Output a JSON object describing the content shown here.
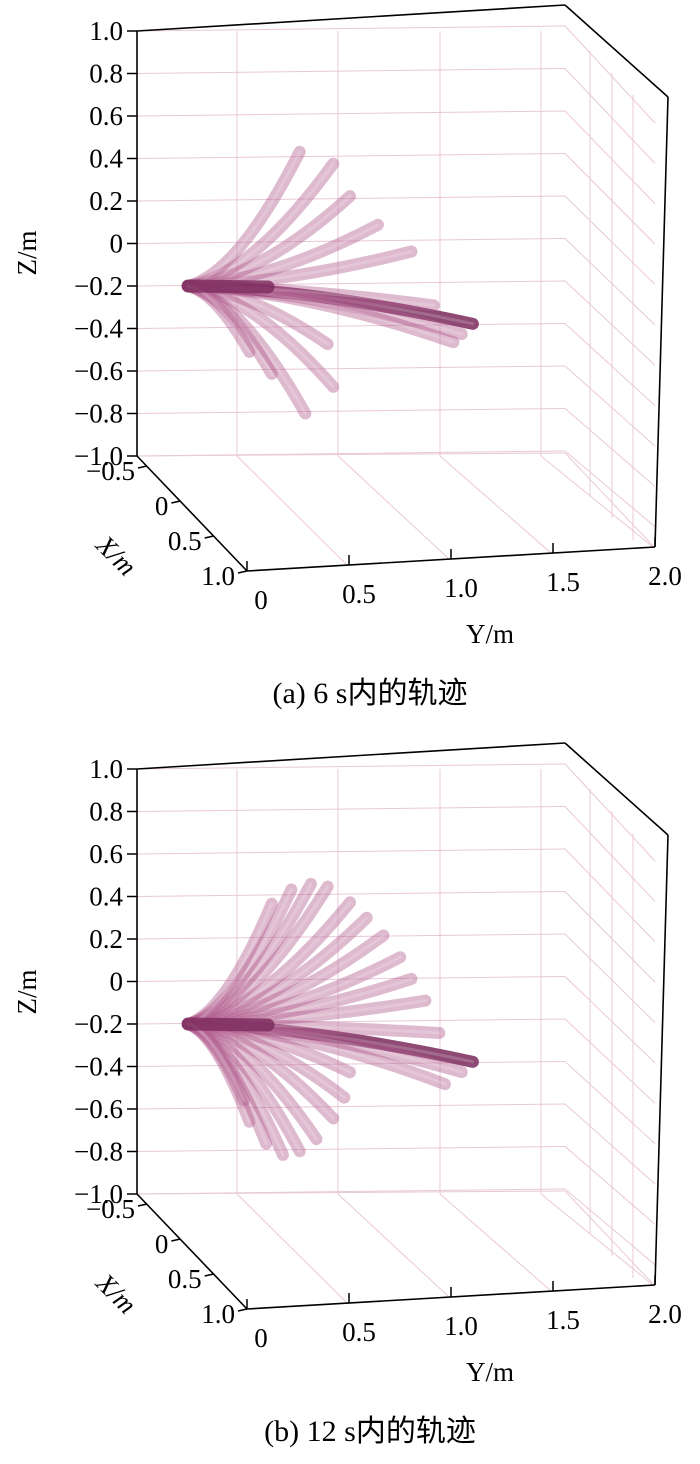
{
  "chart_data": [
    {
      "type": "3d-trajectory",
      "caption": "(a)  6 s内的轨迹",
      "xlabel": "X/m",
      "ylabel": "Y/m",
      "zlabel": "Z/m",
      "xlim": [
        -0.5,
        1.0
      ],
      "ylim": [
        0,
        2.0
      ],
      "zlim": [
        -1.0,
        1.0
      ],
      "x_ticks": [
        "−0.5",
        "0",
        "0.5",
        "1.0"
      ],
      "y_ticks": [
        "0",
        "0.5",
        "1.0",
        "1.5",
        "2.0"
      ],
      "z_ticks": [
        "1.0",
        "0.8",
        "0.6",
        "0.4",
        "0.2",
        "0",
        "−0.2",
        "−0.4",
        "−0.6",
        "−0.8",
        "−1.0"
      ],
      "grid": true,
      "colors": {
        "tube": "#b05a8c",
        "tube_dark": "#7a2a5c",
        "grid": "#e9c8d7"
      },
      "base_point": {
        "y": 0.0,
        "z": -0.2
      },
      "tip_positions": [
        {
          "y": 1.02,
          "z": -0.33
        },
        {
          "y": 0.98,
          "z": -0.38
        },
        {
          "y": 0.95,
          "z": -0.42
        },
        {
          "y": 0.88,
          "z": -0.25
        },
        {
          "y": 0.8,
          "z": 0.0
        },
        {
          "y": 0.68,
          "z": 0.12
        },
        {
          "y": 0.58,
          "z": 0.25
        },
        {
          "y": 0.52,
          "z": 0.4
        },
        {
          "y": 0.4,
          "z": 0.45
        },
        {
          "y": 0.5,
          "z": -0.45
        },
        {
          "y": 0.52,
          "z": -0.65
        },
        {
          "y": 0.42,
          "z": -0.78
        },
        {
          "y": 0.3,
          "z": -0.6
        },
        {
          "y": 0.22,
          "z": -0.5
        }
      ]
    },
    {
      "type": "3d-trajectory",
      "caption": "(b)  12 s内的轨迹",
      "xlabel": "X/m",
      "ylabel": "Y/m",
      "zlabel": "Z/m",
      "xlim": [
        -0.5,
        1.0
      ],
      "ylim": [
        0,
        2.0
      ],
      "zlim": [
        -1.0,
        1.0
      ],
      "x_ticks": [
        "−0.5",
        "0",
        "0.5",
        "1.0"
      ],
      "y_ticks": [
        "0",
        "0.5",
        "1.0",
        "1.5",
        "2.0"
      ],
      "z_ticks": [
        "1.0",
        "0.8",
        "0.6",
        "0.4",
        "0.2",
        "0",
        "−0.2",
        "−0.4",
        "−0.6",
        "−0.8",
        "−1.0"
      ],
      "grid": true,
      "colors": {
        "tube": "#b05a8c",
        "tube_dark": "#7a2a5c",
        "grid": "#e9c8d7"
      },
      "base_point": {
        "y": 0.0,
        "z": -0.2
      },
      "tip_positions": [
        {
          "y": 1.02,
          "z": -0.33
        },
        {
          "y": 0.98,
          "z": -0.38
        },
        {
          "y": 0.92,
          "z": -0.44
        },
        {
          "y": 0.9,
          "z": -0.2
        },
        {
          "y": 0.85,
          "z": -0.05
        },
        {
          "y": 0.8,
          "z": 0.05
        },
        {
          "y": 0.76,
          "z": 0.15
        },
        {
          "y": 0.7,
          "z": 0.25
        },
        {
          "y": 0.64,
          "z": 0.33
        },
        {
          "y": 0.58,
          "z": 0.4
        },
        {
          "y": 0.5,
          "z": 0.47
        },
        {
          "y": 0.44,
          "z": 0.48
        },
        {
          "y": 0.37,
          "z": 0.45
        },
        {
          "y": 0.3,
          "z": 0.38
        },
        {
          "y": 0.58,
          "z": -0.4
        },
        {
          "y": 0.56,
          "z": -0.52
        },
        {
          "y": 0.52,
          "z": -0.62
        },
        {
          "y": 0.46,
          "z": -0.72
        },
        {
          "y": 0.4,
          "z": -0.78
        },
        {
          "y": 0.34,
          "z": -0.8
        },
        {
          "y": 0.28,
          "z": -0.75
        },
        {
          "y": 0.22,
          "z": -0.65
        },
        {
          "y": 0.2,
          "z": -0.55
        }
      ]
    }
  ]
}
